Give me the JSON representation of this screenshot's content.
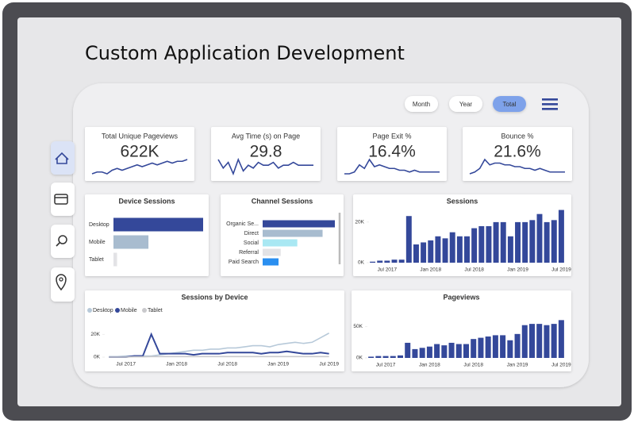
{
  "header": {
    "title": "Custom Application Development"
  },
  "filters": [
    "Month",
    "Year",
    "Total"
  ],
  "kpis": [
    {
      "label": "Total Unique Pageviews",
      "value": "622K",
      "trend": [
        2,
        3,
        3,
        2,
        4,
        5,
        4,
        5,
        6,
        7,
        6,
        7,
        8,
        7,
        8,
        9,
        8,
        9,
        9,
        10
      ]
    },
    {
      "label": "Avg Time (s) on Page",
      "value": "29.8",
      "trend": [
        8,
        5,
        7,
        3,
        8,
        4,
        6,
        5,
        7,
        6,
        6,
        7,
        5,
        6,
        6,
        7,
        6,
        6,
        6,
        6
      ]
    },
    {
      "label": "Page Exit %",
      "value": "16.4%",
      "trend": [
        1,
        1,
        2,
        6,
        4,
        9,
        5,
        6,
        5,
        4,
        4,
        3,
        3,
        2,
        3,
        2,
        2,
        2,
        2,
        2
      ]
    },
    {
      "label": "Bounce %",
      "value": "21.6%",
      "trend": [
        2,
        3,
        5,
        10,
        7,
        8,
        8,
        7,
        7,
        6,
        6,
        5,
        5,
        4,
        5,
        4,
        3,
        3,
        3,
        3
      ]
    }
  ],
  "chart_data": [
    {
      "type": "hbar",
      "title": "Device Sessions",
      "categories": [
        "Desktop",
        "Mobile",
        "Tablet"
      ],
      "values": [
        100,
        39,
        4
      ],
      "colors": [
        "#34489a",
        "#a8bccf",
        "#e3e3e6"
      ],
      "xlim": [
        0,
        100
      ]
    },
    {
      "type": "hbar",
      "title": "Channel Sessions",
      "categories": [
        "Organic Se...",
        "Direct",
        "Social",
        "Referral",
        "Paid Search"
      ],
      "values": [
        100,
        83,
        48,
        25,
        22
      ],
      "colors": [
        "#34489a",
        "#a8bccf",
        "#a9e8f3",
        "#e3e3e6",
        "#2a8ff0"
      ],
      "xlim": [
        0,
        100
      ]
    },
    {
      "type": "bar",
      "title": "Sessions",
      "categories": [
        null,
        null,
        "Jul 2017",
        null,
        null,
        null,
        null,
        null,
        "Jan 2018",
        null,
        null,
        null,
        null,
        null,
        "Jul 2018",
        null,
        null,
        null,
        null,
        null,
        "Jan 2019",
        null,
        null,
        null,
        null,
        null,
        "Jul 2019"
      ],
      "values": [
        0.5,
        1,
        1,
        1.5,
        1.5,
        23,
        9,
        10,
        11,
        13,
        12,
        15,
        13,
        13,
        17,
        18,
        18,
        20,
        20,
        13,
        20,
        20,
        21,
        24,
        20,
        21,
        26
      ],
      "color": "#34489a",
      "ylim": [
        0,
        27
      ],
      "yticks": [
        {
          "value": 0,
          "label": "0K"
        },
        {
          "value": 20,
          "label": "20K"
        }
      ]
    },
    {
      "type": "line",
      "title": "Sessions by Device",
      "categories": [
        null,
        null,
        "Jul 2017",
        null,
        null,
        null,
        null,
        null,
        "Jan 2018",
        null,
        null,
        null,
        null,
        null,
        "Jul 2018",
        null,
        null,
        null,
        null,
        null,
        "Jan 2019",
        null,
        null,
        null,
        null,
        null,
        "Jul 2019"
      ],
      "series": [
        {
          "name": "Desktop",
          "color": "#b7c9d9",
          "values": [
            0.5,
            0.5,
            1,
            1,
            1,
            1,
            2,
            3,
            4,
            5,
            6,
            6,
            7,
            7,
            8,
            8,
            9,
            10,
            10,
            9,
            11,
            12,
            13,
            12,
            13,
            17,
            21
          ]
        },
        {
          "name": "Mobile",
          "color": "#34489a",
          "values": [
            0,
            0,
            0,
            1,
            1,
            20,
            3,
            3,
            3,
            3,
            2,
            3,
            3,
            3,
            4,
            4,
            4,
            4,
            3,
            4,
            4,
            5,
            4,
            3,
            3,
            4,
            3
          ]
        },
        {
          "name": "Tablet",
          "color": "#c9c9cc",
          "values": [
            0,
            0,
            0,
            0.3,
            0.3,
            0.5,
            0.5,
            0.5,
            0.5,
            0.5,
            0.5,
            0.5,
            0.5,
            0.5,
            0.5,
            0.5,
            0.5,
            0.5,
            0.5,
            0.5,
            0.5,
            0.5,
            0.5,
            0.5,
            0.5,
            0.5,
            0.5
          ]
        }
      ],
      "ylim": [
        0,
        25
      ],
      "yticks": [
        {
          "value": 0,
          "label": "0K"
        },
        {
          "value": 20,
          "label": "20K"
        }
      ]
    },
    {
      "type": "bar",
      "title": "Pageviews",
      "categories": [
        null,
        null,
        "Jul 2017",
        null,
        null,
        null,
        null,
        null,
        "Jan 2018",
        null,
        null,
        null,
        null,
        null,
        "Jul 2018",
        null,
        null,
        null,
        null,
        null,
        "Jan 2019",
        null,
        null,
        null,
        null,
        null,
        "Jul 2019"
      ],
      "values": [
        2,
        3,
        3,
        3,
        4,
        24,
        14,
        16,
        18,
        22,
        20,
        24,
        22,
        22,
        30,
        32,
        34,
        36,
        36,
        28,
        38,
        52,
        54,
        54,
        52,
        54,
        60
      ],
      "color": "#34489a",
      "ylim": [
        0,
        68
      ],
      "yticks": [
        {
          "value": 0,
          "label": "0K"
        },
        {
          "value": 50,
          "label": "50K"
        }
      ]
    }
  ]
}
